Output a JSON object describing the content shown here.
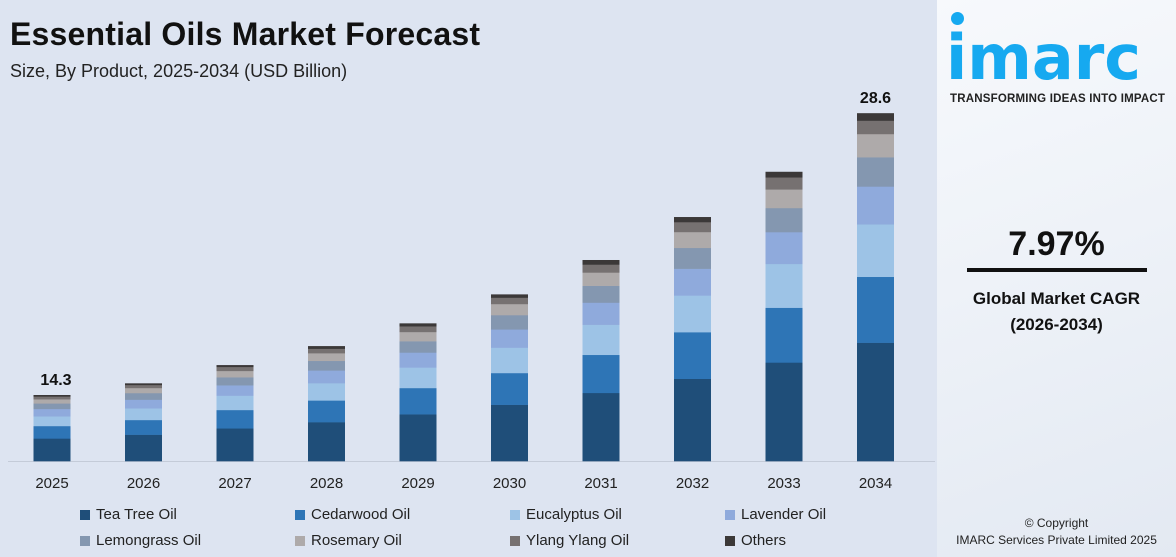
{
  "header": {
    "title": "Essential Oils Market Forecast",
    "subtitle": "Size, By Product, 2025-2034 (USD Billion)"
  },
  "brand": {
    "logo_text": "imarc",
    "tagline": "TRANSFORMING IDEAS INTO IMPACT",
    "color": "#16a9f0"
  },
  "cagr": {
    "value": "7.97%",
    "label_line1": "Global Market CAGR",
    "label_line2": "(2026-2034)"
  },
  "copyright": {
    "line1": "© Copyright",
    "line2": "IMARC Services Private Limited 2025"
  },
  "chart_data": {
    "type": "bar",
    "stacked": true,
    "title": "Essential Oils Market Forecast",
    "subtitle": "Size, By Product, 2025-2034 (USD Billion)",
    "categories": [
      "2025",
      "2026",
      "2027",
      "2028",
      "2029",
      "2030",
      "2031",
      "2032",
      "2033",
      "2034"
    ],
    "series": [
      {
        "name": "Tea Tree Oil",
        "color": "#1f4e79",
        "values": [
          4.9,
          5.2,
          5.7,
          6.1,
          6.6,
          7.1,
          7.7,
          8.3,
          9.0,
          9.7
        ]
      },
      {
        "name": "Cedarwood Oil",
        "color": "#2e75b6",
        "values": [
          2.7,
          2.9,
          3.2,
          3.4,
          3.7,
          4.0,
          4.3,
          4.7,
          5.0,
          5.4
        ]
      },
      {
        "name": "Eucalyptus Oil",
        "color": "#9dc3e6",
        "values": [
          2.1,
          2.3,
          2.5,
          2.7,
          2.9,
          3.2,
          3.4,
          3.7,
          4.0,
          4.3
        ]
      },
      {
        "name": "Lavender Oil",
        "color": "#8faadc",
        "values": [
          1.6,
          1.7,
          1.8,
          2.0,
          2.1,
          2.3,
          2.5,
          2.7,
          2.9,
          3.1
        ]
      },
      {
        "name": "Lemongrass Oil",
        "color": "#8497b0",
        "values": [
          1.2,
          1.3,
          1.4,
          1.5,
          1.6,
          1.8,
          1.9,
          2.1,
          2.2,
          2.4
        ]
      },
      {
        "name": "Rosemary Oil",
        "color": "#aeaaaa",
        "values": [
          0.9,
          1.0,
          1.1,
          1.2,
          1.3,
          1.4,
          1.5,
          1.6,
          1.7,
          1.9
        ]
      },
      {
        "name": "Ylang Ylang Oil",
        "color": "#767171",
        "values": [
          0.6,
          0.6,
          0.7,
          0.7,
          0.8,
          0.8,
          0.9,
          1.0,
          1.1,
          1.1
        ]
      },
      {
        "name": "Others",
        "color": "#3b3838",
        "values": [
          0.3,
          0.3,
          0.3,
          0.4,
          0.4,
          0.4,
          0.5,
          0.5,
          0.5,
          0.6
        ]
      }
    ],
    "data_labels": [
      {
        "category": "2025",
        "text": "14.3"
      },
      {
        "category": "2034",
        "text": "28.6"
      }
    ],
    "grid": false,
    "legend": "bottom"
  }
}
